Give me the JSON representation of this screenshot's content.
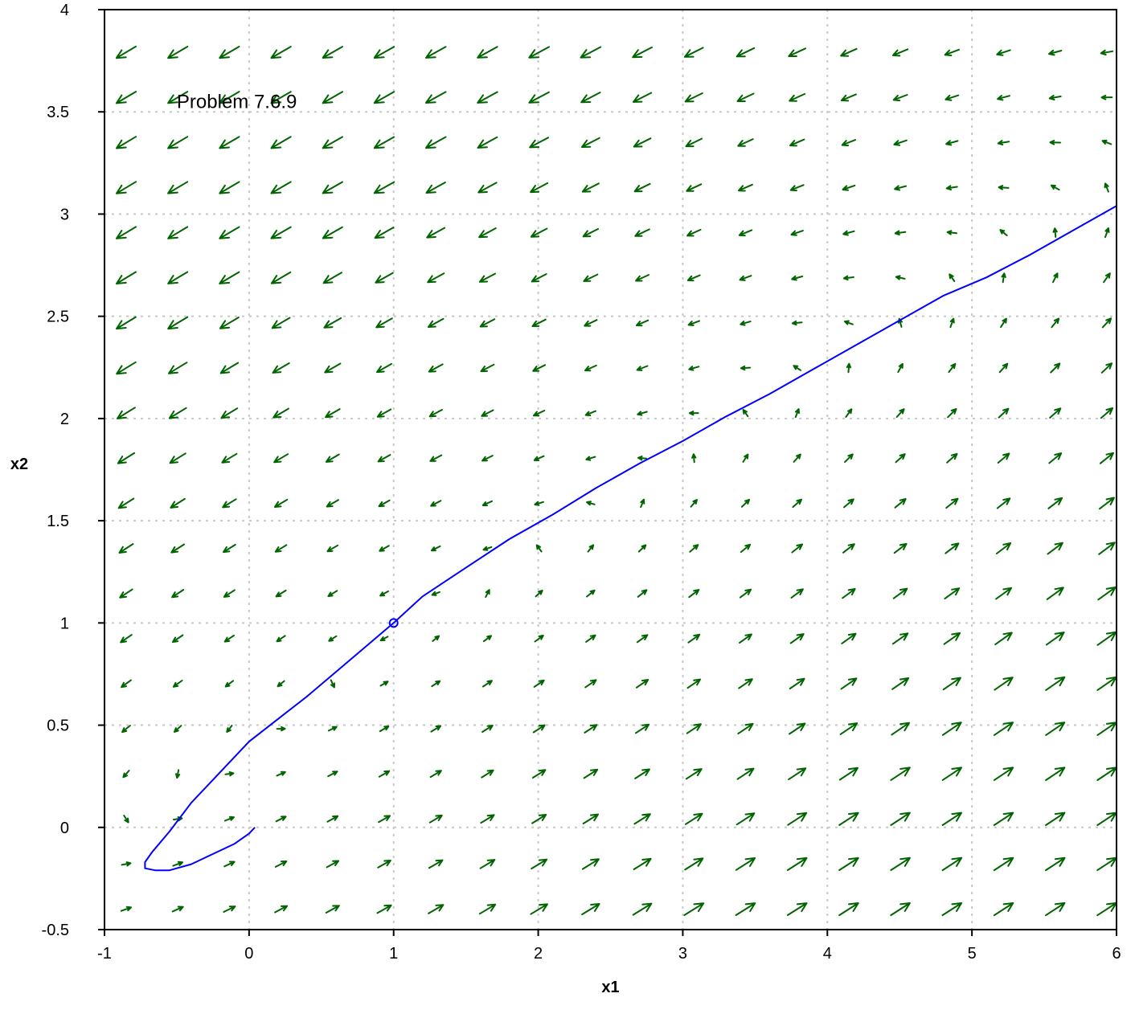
{
  "chart_data": {
    "type": "vector-field",
    "title": "",
    "xlabel": "x1",
    "ylabel": "x2",
    "xlim": [
      -1,
      6
    ],
    "ylim": [
      -0.5,
      4
    ],
    "xticks": [
      -1,
      0,
      1,
      2,
      3,
      4,
      5,
      6
    ],
    "yticks": [
      -0.5,
      0,
      0.5,
      1,
      1.5,
      2,
      2.5,
      3,
      3.5,
      4
    ],
    "xtick_labels": [
      "-1",
      "0",
      "1",
      "2",
      "3",
      "4",
      "5",
      "6"
    ],
    "ytick_labels": [
      "-0.5",
      "0",
      "0.5",
      "1",
      "1.5",
      "2",
      "2.5",
      "3",
      "3.5",
      "4"
    ],
    "grid": true,
    "annotation": {
      "text": "Problem 7.6.9",
      "x": -0.5,
      "y": 3.55
    },
    "field_color": "#006400",
    "trajectory_color": "#0000ff",
    "field_grid": {
      "x_start": -0.85,
      "x_step": 0.357,
      "nx": 20,
      "y_start": -0.4,
      "y_step": 0.2206,
      "ny": 20
    },
    "initial_point": [
      1,
      1
    ],
    "trajectory": [
      [
        6.0,
        3.04
      ],
      [
        5.7,
        2.92
      ],
      [
        5.4,
        2.8
      ],
      [
        5.1,
        2.69
      ],
      [
        4.8,
        2.6
      ],
      [
        4.5,
        2.48
      ],
      [
        4.2,
        2.36
      ],
      [
        3.9,
        2.24
      ],
      [
        3.6,
        2.12
      ],
      [
        3.3,
        2.01
      ],
      [
        3.0,
        1.89
      ],
      [
        2.7,
        1.78
      ],
      [
        2.4,
        1.66
      ],
      [
        2.1,
        1.53
      ],
      [
        1.8,
        1.41
      ],
      [
        1.5,
        1.27
      ],
      [
        1.2,
        1.13
      ],
      [
        1.0,
        1.0
      ],
      [
        0.8,
        0.88
      ],
      [
        0.6,
        0.76
      ],
      [
        0.4,
        0.64
      ],
      [
        0.2,
        0.53
      ],
      [
        0.0,
        0.42
      ],
      [
        -0.2,
        0.27
      ],
      [
        -0.4,
        0.12
      ],
      [
        -0.55,
        -0.02
      ],
      [
        -0.67,
        -0.12
      ],
      [
        -0.72,
        -0.17
      ],
      [
        -0.72,
        -0.2
      ],
      [
        -0.65,
        -0.21
      ],
      [
        -0.55,
        -0.21
      ],
      [
        -0.4,
        -0.18
      ],
      [
        -0.25,
        -0.13
      ],
      [
        -0.1,
        -0.08
      ],
      [
        0.0,
        -0.03
      ],
      [
        0.04,
        0.0
      ]
    ]
  }
}
